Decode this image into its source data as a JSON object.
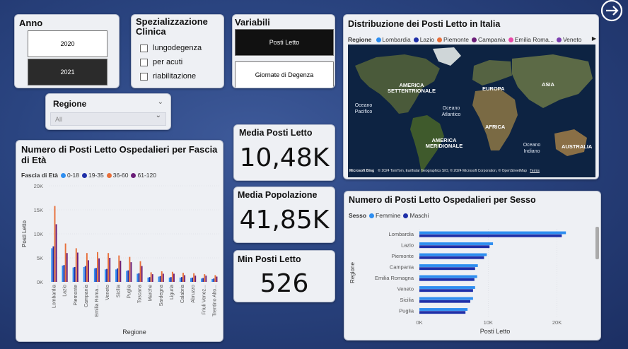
{
  "colors": {
    "c1": "#2e8ef0",
    "c2": "#1f2fa8",
    "c3": "#e86f3a",
    "c4": "#6b1e78",
    "c5": "#e849a8",
    "c6": "#7b3fb0"
  },
  "anno": {
    "title": "Anno",
    "options": [
      "2020",
      "2021"
    ],
    "selected": "2021"
  },
  "specializzazione": {
    "title": "Spezializzazione Clinica",
    "options": [
      "lungodegenza",
      "per acuti",
      "riabilitazione"
    ]
  },
  "variabili": {
    "title": "Variabili",
    "options": [
      "Posti Letto",
      "Giornate di Degenza"
    ],
    "selected": "Posti Letto"
  },
  "regione_filter": {
    "title": "Regione",
    "value": "All"
  },
  "map": {
    "title": "Distribuzione dei Posti Letto in Italia",
    "legend_title": "Regione",
    "legend": [
      "Lombardia",
      "Lazio",
      "Piemonte",
      "Campania",
      "Emilia Roma...",
      "Veneto"
    ],
    "labels": {
      "na": "AMERICA SETTENTRIONALE",
      "eu": "EUROPA",
      "as": "ASIA",
      "po": "Oceano Pacifico",
      "oa": "Oceano Atlantico",
      "af": "AFRICA",
      "sa": "AMERICA MERIDIONALE",
      "oi": "Oceano Indiano",
      "au": "AUSTRALIA"
    },
    "attribution": "© 2024 TomTom, Earthstar Geographics SIO, © 2024 Microsoft Corporation, © OpenStreetMap",
    "terms": "Terms",
    "brand": "Microsoft Bing"
  },
  "kpis": [
    {
      "title": "Media Posti Letto",
      "value": "10,48K"
    },
    {
      "title": "Media Popolazione",
      "value": "41,85K"
    },
    {
      "title": "Min Posti Letto",
      "value": "526"
    }
  ],
  "age_chart": {
    "title": "Numero di Posti Letto Ospedalieri per Fascia di Età"
  },
  "sex_chart": {
    "title": "Numero di Posti Letto Ospedalieri per Sesso"
  },
  "chart_data": [
    {
      "type": "bar",
      "title": "Numero di Posti Letto Ospedalieri per Fascia di Età",
      "xlabel": "Regione",
      "ylabel": "Posti Letto",
      "legend_title": "Fascia di Età",
      "ylim": [
        0,
        20000
      ],
      "yticks": [
        "0K",
        "5K",
        "10K",
        "15K",
        "20K"
      ],
      "legend_placement": "top-left",
      "categories": [
        "Lombardia",
        "Lazio",
        "Piemonte",
        "Campania",
        "Emilia Roma...",
        "Veneto",
        "Sicilia",
        "Puglia",
        "Toscana",
        "Marche",
        "Sardegna",
        "Liguria",
        "Calabria",
        "Abruzzo",
        "Friuli Venez...",
        "Trentino Alto..."
      ],
      "series": [
        {
          "name": "0-18",
          "values": [
            7000,
            3400,
            3000,
            3100,
            2800,
            2600,
            2600,
            2300,
            1700,
            900,
            1100,
            900,
            900,
            800,
            700,
            600
          ]
        },
        {
          "name": "19-35",
          "values": [
            7400,
            3500,
            3100,
            3300,
            2900,
            2700,
            2800,
            2400,
            1800,
            1000,
            1200,
            1000,
            1000,
            900,
            800,
            700
          ]
        },
        {
          "name": "36-60",
          "values": [
            15800,
            8000,
            7000,
            6000,
            6200,
            6000,
            5500,
            5200,
            4300,
            2000,
            2200,
            2100,
            1900,
            1800,
            1600,
            1400
          ]
        },
        {
          "name": "61-120",
          "values": [
            12000,
            6000,
            6100,
            4500,
            4900,
            5000,
            4400,
            4100,
            3300,
            1600,
            1700,
            1700,
            1400,
            1300,
            1300,
            1100
          ]
        }
      ]
    },
    {
      "type": "bar",
      "orientation": "horizontal",
      "title": "Numero di Posti Letto Ospedalieri per Sesso",
      "xlabel": "Posti Letto",
      "ylabel": "Regione",
      "legend_title": "Sesso",
      "xlim": [
        0,
        22000
      ],
      "xticks": [
        "0K",
        "10K",
        "20K"
      ],
      "legend_placement": "top-left",
      "categories": [
        "Lombardia",
        "Lazio",
        "Piemonte",
        "Campania",
        "Emilia Romagna",
        "Veneto",
        "Sicilia",
        "Puglia"
      ],
      "series": [
        {
          "name": "Femmine",
          "values": [
            21300,
            10700,
            9800,
            8500,
            8400,
            8100,
            7800,
            7000
          ]
        },
        {
          "name": "Maschi",
          "values": [
            20700,
            10200,
            9400,
            8100,
            8000,
            7800,
            7400,
            6700
          ]
        }
      ]
    }
  ]
}
